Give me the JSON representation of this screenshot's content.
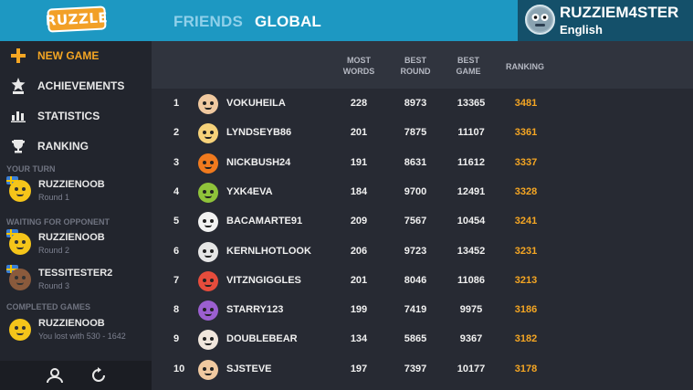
{
  "app": {
    "logo_text": "RUZZLE"
  },
  "header": {
    "tabs": [
      {
        "label": "FRIENDS"
      },
      {
        "label": "GLOBAL"
      }
    ],
    "user": {
      "name": "RUZZIEM4STER",
      "language": "English"
    }
  },
  "sidebar": {
    "items": [
      {
        "label": "NEW GAME",
        "icon": "plus-icon"
      },
      {
        "label": "ACHIEVEMENTS",
        "icon": "star-badge-icon"
      },
      {
        "label": "STATISTICS",
        "icon": "bar-chart-icon"
      },
      {
        "label": "RANKING",
        "icon": "trophy-icon"
      }
    ],
    "sections": {
      "your_turn": "YOUR TURN",
      "waiting": "WAITING FOR OPPONENT",
      "completed": "COMPLETED GAMES"
    },
    "games": [
      {
        "name": "RUZZIENOOB",
        "sub": "Round 1"
      },
      {
        "name": "RUZZIENOOB",
        "sub": "Round 2"
      },
      {
        "name": "TESSITESTER2",
        "sub": "Round 3"
      },
      {
        "name": "RUZZIENOOB",
        "sub": "You lost with 530 - 1642"
      }
    ],
    "bottom_icons": [
      "profile-icon",
      "refresh-icon"
    ]
  },
  "table": {
    "headers": {
      "most_words_1": "MOST",
      "most_words_2": "WORDS",
      "best_round_1": "BEST",
      "best_round_2": "ROUND",
      "best_game_1": "BEST",
      "best_game_2": "GAME",
      "ranking": "RANKING"
    },
    "rows": [
      {
        "rank": "1",
        "name": "VOKUHEILA",
        "most_words": "228",
        "best_round": "8973",
        "best_game": "13365",
        "ranking": "3481",
        "face_color": "#f0c9a0"
      },
      {
        "rank": "2",
        "name": "LYNDSEYB86",
        "most_words": "201",
        "best_round": "7875",
        "best_game": "11107",
        "ranking": "3361",
        "face_color": "#f6d27a"
      },
      {
        "rank": "3",
        "name": "NICKBUSH24",
        "most_words": "191",
        "best_round": "8631",
        "best_game": "11612",
        "ranking": "3337",
        "face_color": "#f07a1e"
      },
      {
        "rank": "4",
        "name": "YXK4EVA",
        "most_words": "184",
        "best_round": "9700",
        "best_game": "12491",
        "ranking": "3328",
        "face_color": "#8fc33a"
      },
      {
        "rank": "5",
        "name": "BACAMARTE91",
        "most_words": "209",
        "best_round": "7567",
        "best_game": "10454",
        "ranking": "3241",
        "face_color": "#f2f2f2"
      },
      {
        "rank": "6",
        "name": "KERNLHOTLOOK",
        "most_words": "206",
        "best_round": "9723",
        "best_game": "13452",
        "ranking": "3231",
        "face_color": "#e6e6e6"
      },
      {
        "rank": "7",
        "name": "VITZNGIGGLES",
        "most_words": "201",
        "best_round": "8046",
        "best_game": "11086",
        "ranking": "3213",
        "face_color": "#e64c3c"
      },
      {
        "rank": "8",
        "name": "STARRY123",
        "most_words": "199",
        "best_round": "7419",
        "best_game": "9975",
        "ranking": "3186",
        "face_color": "#9b5fd0"
      },
      {
        "rank": "9",
        "name": "DOUBLEBEAR",
        "most_words": "134",
        "best_round": "5865",
        "best_game": "9367",
        "ranking": "3182",
        "face_color": "#f0e6dc"
      },
      {
        "rank": "10",
        "name": "SJSTEVE",
        "most_words": "197",
        "best_round": "7397",
        "best_game": "10177",
        "ranking": "3178",
        "face_color": "#f0c9a0"
      }
    ]
  },
  "colors": {
    "accent": "#f5a623",
    "header_blue": "#1d98c2",
    "user_box": "#14506a"
  }
}
